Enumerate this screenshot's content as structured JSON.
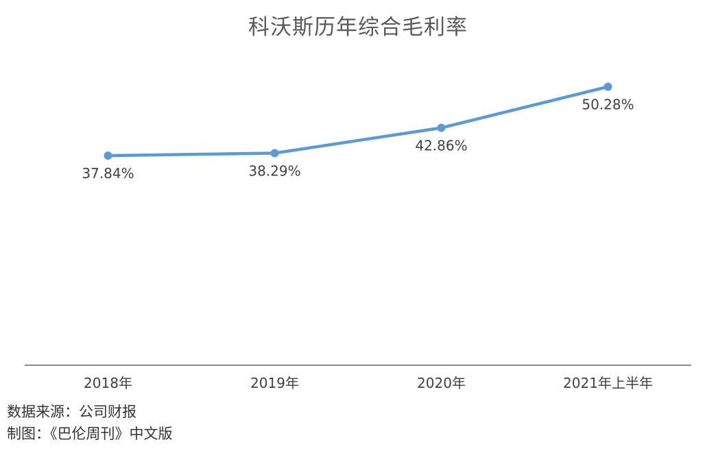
{
  "colors": {
    "series": "#5b9bd5",
    "axis": "#8c8c8c",
    "label_text": "#404040",
    "title_text": "#595959"
  },
  "chart_data": {
    "type": "line",
    "title": "科沃斯历年综合毛利率",
    "categories": [
      "2018年",
      "2019年",
      "2020年",
      "2021年上半年"
    ],
    "series": [
      {
        "values": [
          37.84,
          38.29,
          42.86,
          50.28
        ],
        "data_labels": [
          "37.84%",
          "38.29%",
          "42.86%",
          "50.28%"
        ]
      }
    ],
    "xlabel": "",
    "ylabel": "",
    "ylim": [
      0,
      60
    ],
    "grid": false,
    "legend": "none",
    "y_axis_visible": false
  },
  "footer": {
    "source": "数据来源：公司财报",
    "credit": "制图：《巴伦周刊》中文版"
  }
}
